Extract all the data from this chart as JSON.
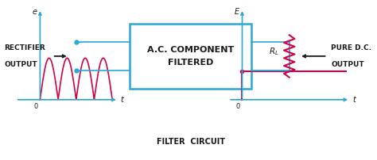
{
  "bg_color": "#ffffff",
  "cyan_color": "#29a8d4",
  "pink_color": "#d4004a",
  "dark_color": "#1a1a1a",
  "box_label": "A.C. COMPONENT\nFILTERED",
  "bottom_label": "FILTER  CIRCUIT",
  "left_label1": "RECTIFIER",
  "left_label2": "OUTPUT",
  "right_label1": "PURE D.C.",
  "right_label2": "OUTPUT",
  "rl_label": "$R_L$"
}
